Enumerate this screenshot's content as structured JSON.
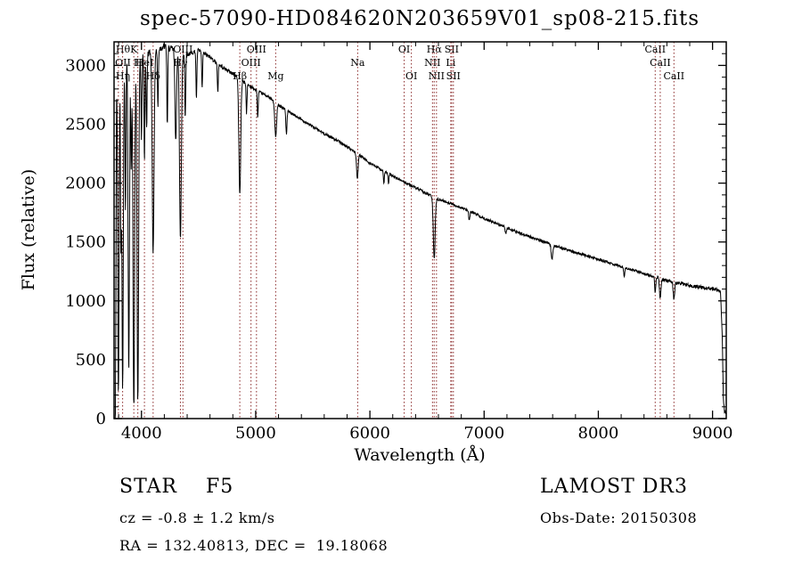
{
  "chart_data": {
    "type": "line",
    "title": "spec-57090-HD084620N203659V01_sp08-215.fits",
    "xlabel": "Wavelength (Å)",
    "ylabel": "Flux (relative)",
    "xlim": [
      3760,
      9120
    ],
    "ylim": [
      0,
      3200
    ],
    "xticks": [
      4000,
      5000,
      6000,
      7000,
      8000,
      9000
    ],
    "xminor_step": 200,
    "yticks": [
      0,
      500,
      1000,
      1500,
      2000,
      2500,
      3000
    ],
    "yminor_step": 100,
    "line_color": "#000000",
    "marker_color": "#8b2a2a",
    "grid": false,
    "legend": "none",
    "continuum": [
      [
        3760,
        2980
      ],
      [
        3800,
        3030
      ],
      [
        3850,
        3050
      ],
      [
        3900,
        3060
      ],
      [
        3950,
        3070
      ],
      [
        4000,
        3080
      ],
      [
        4100,
        3120
      ],
      [
        4200,
        3160
      ],
      [
        4300,
        3130
      ],
      [
        4400,
        3090
      ],
      [
        4500,
        3130
      ],
      [
        4600,
        3070
      ],
      [
        4700,
        2990
      ],
      [
        4800,
        2930
      ],
      [
        4900,
        2860
      ],
      [
        5000,
        2790
      ],
      [
        5100,
        2740
      ],
      [
        5200,
        2665
      ],
      [
        5300,
        2600
      ],
      [
        5400,
        2540
      ],
      [
        5500,
        2480
      ],
      [
        5600,
        2420
      ],
      [
        5700,
        2370
      ],
      [
        5800,
        2310
      ],
      [
        5900,
        2245
      ],
      [
        6000,
        2170
      ],
      [
        6100,
        2115
      ],
      [
        6200,
        2060
      ],
      [
        6300,
        2010
      ],
      [
        6400,
        1960
      ],
      [
        6500,
        1910
      ],
      [
        6600,
        1862
      ],
      [
        6700,
        1830
      ],
      [
        6800,
        1790
      ],
      [
        6900,
        1752
      ],
      [
        7000,
        1700
      ],
      [
        7100,
        1660
      ],
      [
        7200,
        1620
      ],
      [
        7300,
        1580
      ],
      [
        7400,
        1545
      ],
      [
        7500,
        1510
      ],
      [
        7600,
        1475
      ],
      [
        7700,
        1442
      ],
      [
        7800,
        1412
      ],
      [
        7900,
        1382
      ],
      [
        8000,
        1352
      ],
      [
        8100,
        1322
      ],
      [
        8200,
        1292
      ],
      [
        8300,
        1262
      ],
      [
        8400,
        1232
      ],
      [
        8500,
        1202
      ],
      [
        8600,
        1172
      ],
      [
        8700,
        1150
      ],
      [
        8800,
        1132
      ],
      [
        8900,
        1115
      ],
      [
        9000,
        1100
      ],
      [
        9050,
        1088
      ],
      [
        9070,
        1070
      ],
      [
        9085,
        700
      ],
      [
        9095,
        150
      ],
      [
        9105,
        60
      ],
      [
        9120,
        50
      ]
    ],
    "absorption_lines": [
      [
        3762,
        2900,
        4
      ],
      [
        3771,
        2850,
        5
      ],
      [
        3798,
        2800,
        6
      ],
      [
        3820,
        1500,
        4
      ],
      [
        3835,
        2750,
        6
      ],
      [
        3860,
        1300,
        4
      ],
      [
        3889,
        2650,
        6
      ],
      [
        3910,
        900,
        4
      ],
      [
        3933,
        2980,
        7
      ],
      [
        3968,
        2920,
        7
      ],
      [
        4000,
        700,
        4
      ],
      [
        4026,
        900,
        4
      ],
      [
        4045,
        650,
        4
      ],
      [
        4102,
        1700,
        8
      ],
      [
        4144,
        500,
        4
      ],
      [
        4226,
        650,
        4
      ],
      [
        4300,
        750,
        7
      ],
      [
        4341,
        1600,
        8
      ],
      [
        4383,
        550,
        4
      ],
      [
        4481,
        400,
        4
      ],
      [
        4531,
        300,
        4
      ],
      [
        4668,
        250,
        4
      ],
      [
        4861,
        980,
        8
      ],
      [
        4920,
        250,
        4
      ],
      [
        5018,
        220,
        4
      ],
      [
        5175,
        290,
        8
      ],
      [
        5269,
        200,
        5
      ],
      [
        5890,
        210,
        7
      ],
      [
        6122,
        110,
        4
      ],
      [
        6163,
        90,
        4
      ],
      [
        6563,
        525,
        8
      ],
      [
        6870,
        85,
        5
      ],
      [
        7190,
        60,
        5
      ],
      [
        7594,
        125,
        7
      ],
      [
        8227,
        70,
        5
      ],
      [
        8498,
        130,
        5
      ],
      [
        8542,
        170,
        6
      ],
      [
        8662,
        150,
        6
      ]
    ],
    "noise_base": 11,
    "sample_step": 2.5,
    "spectral_markers": [
      {
        "wavelength": 3727,
        "label": "OII",
        "row": 2
      },
      {
        "wavelength": 3798,
        "label": "Hθ",
        "row": 1
      },
      {
        "wavelength": 3835,
        "label": "Hη",
        "row": 3
      },
      {
        "wavelength": 3933,
        "label": "K",
        "row": 1
      },
      {
        "wavelength": 3968,
        "label": "H",
        "row": 2
      },
      {
        "wavelength": 4026,
        "label": "HeI",
        "row": 2
      },
      {
        "wavelength": 4102,
        "label": "Hδ",
        "row": 3
      },
      {
        "wavelength": 4341,
        "label": "Hγ",
        "row": 2
      },
      {
        "wavelength": 4363,
        "label": "OIII",
        "row": 1
      },
      {
        "wavelength": 4861,
        "label": "Hβ",
        "row": 3
      },
      {
        "wavelength": 4959,
        "label": "OIII",
        "row": 2
      },
      {
        "wavelength": 5007,
        "label": "OIII",
        "row": 1
      },
      {
        "wavelength": 5175,
        "label": "Mg",
        "row": 3
      },
      {
        "wavelength": 5893,
        "label": "Na",
        "row": 2
      },
      {
        "wavelength": 6300,
        "label": "OI",
        "row": 1
      },
      {
        "wavelength": 6363,
        "label": "OI",
        "row": 3
      },
      {
        "wavelength": 6548,
        "label": "NII",
        "row": 2
      },
      {
        "wavelength": 6563,
        "label": "Hα",
        "row": 1
      },
      {
        "wavelength": 6583,
        "label": "NII",
        "row": 3
      },
      {
        "wavelength": 6708,
        "label": "Li",
        "row": 2
      },
      {
        "wavelength": 6716,
        "label": "SII",
        "row": 1
      },
      {
        "wavelength": 6731,
        "label": "SII",
        "row": 3
      },
      {
        "wavelength": 8498,
        "label": "CaII",
        "row": 1
      },
      {
        "wavelength": 8542,
        "label": "CaII",
        "row": 2
      },
      {
        "wavelength": 8662,
        "label": "CaII",
        "row": 3
      }
    ]
  },
  "annotations": {
    "star_type": "STAR    F5",
    "survey": "LAMOST DR3",
    "cz": "cz = -0.8 ± 1.2 km/s",
    "obs_date": "Obs-Date: 20150308",
    "ra_dec": "RA = 132.40813, DEC =  19.18068"
  }
}
